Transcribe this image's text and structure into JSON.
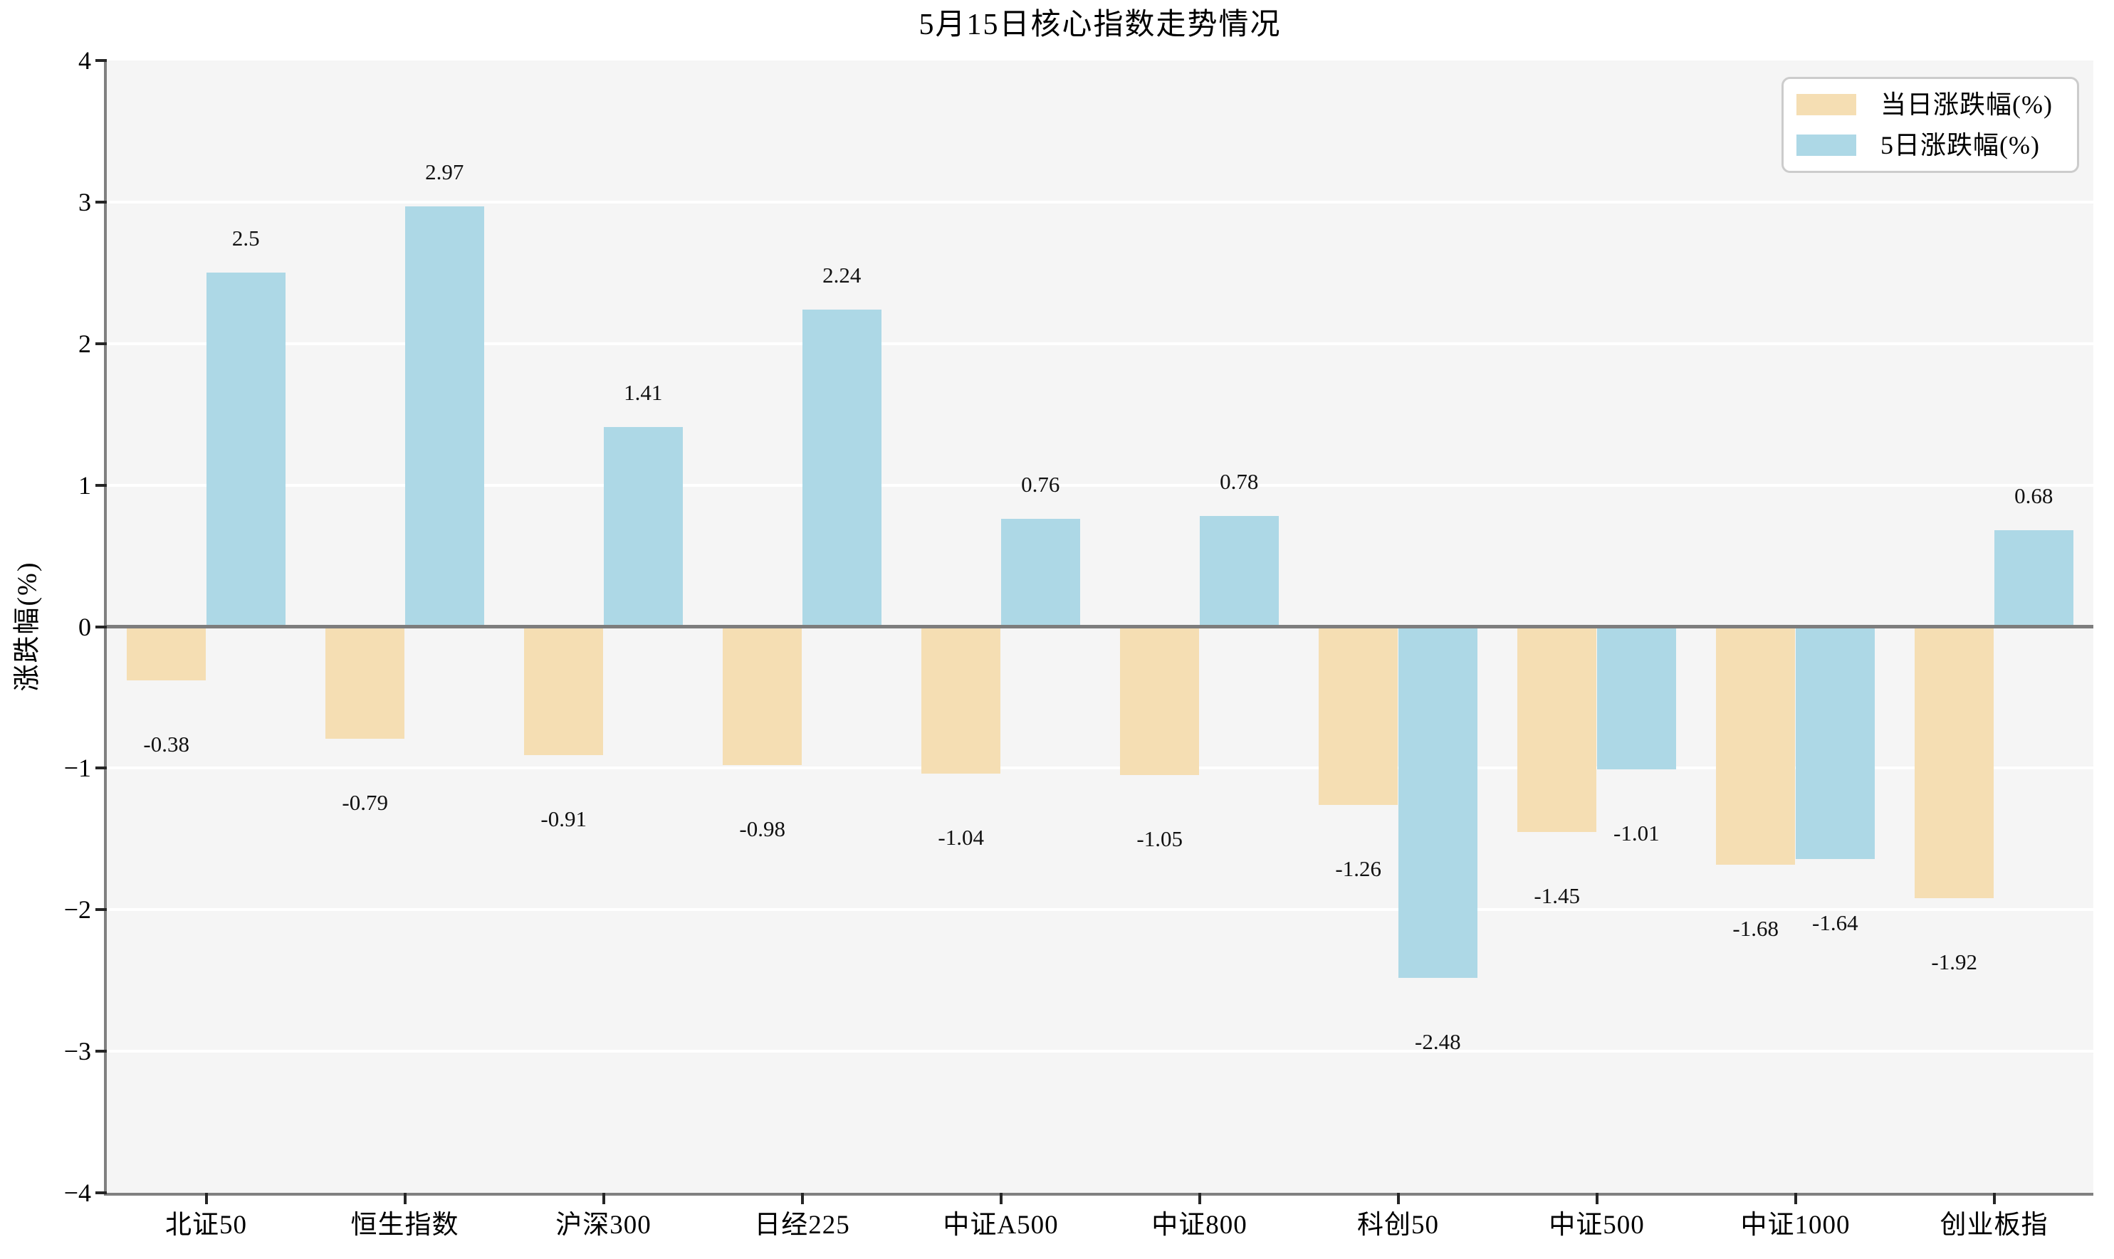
{
  "title": "5月15日核心指数走势情况",
  "ylabel": "涨跌幅(%)",
  "legend": {
    "items": [
      {
        "label": "当日涨跌幅(%)",
        "color": "#F5DEB3"
      },
      {
        "label": "5日涨跌幅(%)",
        "color": "#ADD8E6"
      }
    ]
  },
  "axis": {
    "y_ticks": [
      {
        "v": 4,
        "label": "4"
      },
      {
        "v": 3,
        "label": "3"
      },
      {
        "v": 2,
        "label": "2"
      },
      {
        "v": 1,
        "label": "1"
      },
      {
        "v": 0,
        "label": "0"
      },
      {
        "v": -1,
        "label": "−1"
      },
      {
        "v": -2,
        "label": "−2"
      },
      {
        "v": -3,
        "label": "−3"
      },
      {
        "v": -4,
        "label": "−4"
      }
    ]
  },
  "colors": {
    "plot_background": "#F5F5F5",
    "grid": "#FFFFFF",
    "spine": "#808080",
    "daily_bar": "#F5DEB3",
    "five_day_bar": "#ADD8E6"
  },
  "chart_data": {
    "type": "bar",
    "title": "5月15日核心指数走势情况",
    "xlabel": "",
    "ylabel": "涨跌幅(%)",
    "ylim": [
      -4,
      4
    ],
    "grid": true,
    "legend_position": "upper right",
    "categories": [
      "北证50",
      "恒生指数",
      "沪深300",
      "日经225",
      "中证A500",
      "中证800",
      "科创50",
      "中证500",
      "中证1000",
      "创业板指"
    ],
    "series": [
      {
        "name": "当日涨跌幅(%)",
        "color": "#F5DEB3",
        "values": [
          -0.38,
          -0.79,
          -0.91,
          -0.98,
          -1.04,
          -1.05,
          -1.26,
          -1.45,
          -1.68,
          -1.92
        ]
      },
      {
        "name": "5日涨跌幅(%)",
        "color": "#ADD8E6",
        "values": [
          2.5,
          2.97,
          1.41,
          2.24,
          0.76,
          0.78,
          -2.48,
          -1.01,
          -1.64,
          0.68
        ]
      }
    ]
  }
}
